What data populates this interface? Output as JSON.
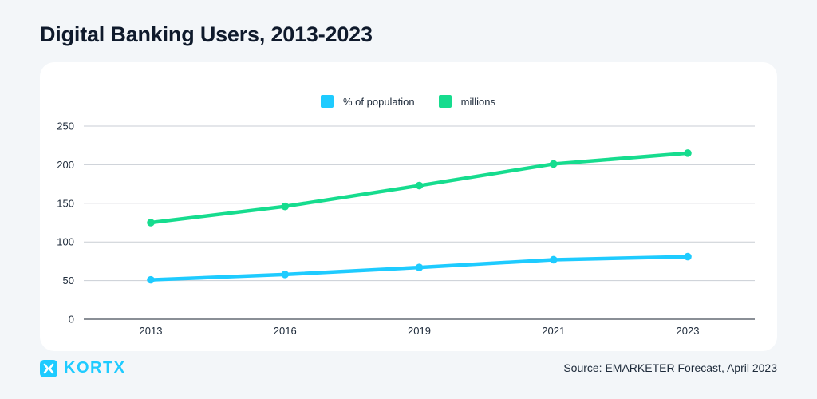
{
  "page": {
    "title": "Digital Banking Users, 2013-2023",
    "source": "Source: EMARKETER Forecast, April 2023",
    "logo_text": "KORTX"
  },
  "colors": {
    "background": "#f3f6f9",
    "card": "#ffffff",
    "series_percent": "#1ecbff",
    "series_millions": "#16dc8e",
    "logo": "#1ecbff"
  },
  "chart_data": {
    "type": "line",
    "title": "",
    "xlabel": "",
    "ylabel": "",
    "categories": [
      "2013",
      "2016",
      "2019",
      "2021",
      "2023"
    ],
    "ylim": [
      0,
      250
    ],
    "yticks": [
      0,
      50,
      100,
      150,
      200,
      250
    ],
    "grid": true,
    "legend_position": "top-center",
    "series": [
      {
        "name": "% of population",
        "color": "#1ecbff",
        "values": [
          51,
          58,
          67,
          77,
          81
        ]
      },
      {
        "name": "millions",
        "color": "#16dc8e",
        "values": [
          125,
          146,
          173,
          201,
          215
        ]
      }
    ]
  }
}
